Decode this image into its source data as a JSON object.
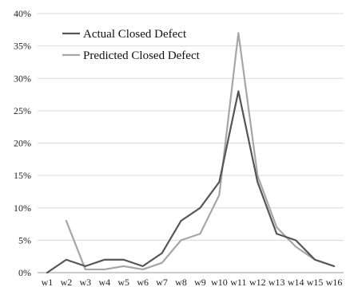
{
  "chart_data": {
    "type": "line",
    "title": "",
    "xlabel": "",
    "ylabel": "",
    "categories": [
      "w1",
      "w2",
      "w3",
      "w4",
      "w5",
      "w6",
      "w7",
      "w8",
      "w9",
      "w10",
      "w11",
      "w12",
      "w13",
      "w14",
      "w15",
      "w16"
    ],
    "y_ticks": [
      "0%",
      "5%",
      "10%",
      "15%",
      "20%",
      "25%",
      "30%",
      "35%",
      "40%"
    ],
    "ylim": [
      0,
      40
    ],
    "y_unit": "percent",
    "grid": "horizontal",
    "legend_position": "top-left",
    "series": [
      {
        "name": "Actual Closed Defect",
        "color": "#555555",
        "values": [
          0,
          2,
          1,
          2,
          2,
          1,
          3,
          8,
          10,
          14,
          28,
          14,
          6,
          5,
          2,
          1
        ]
      },
      {
        "name": "Predicted Closed Defect",
        "color": "#a6a6a6",
        "values": [
          null,
          8,
          0.5,
          0.5,
          1,
          0.5,
          1.5,
          5,
          6,
          12,
          37,
          15,
          7,
          4,
          2,
          1
        ]
      }
    ]
  }
}
